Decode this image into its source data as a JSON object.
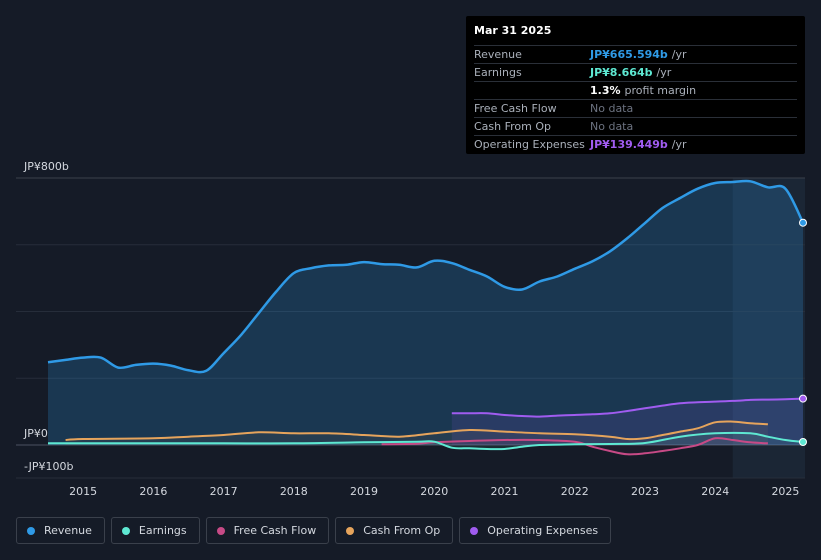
{
  "tooltip": {
    "date": "Mar 31 2025",
    "rows": [
      {
        "label": "Revenue",
        "value": "JP¥665.594b",
        "suffix": "/yr",
        "color": "#2f9ae6"
      },
      {
        "label": "Earnings",
        "value": "JP¥8.664b",
        "suffix": "/yr",
        "color": "#5ee8d2"
      },
      {
        "label": "",
        "value": "1.3%",
        "suffix": "profit margin",
        "color": "#ffffff"
      },
      {
        "label": "Free Cash Flow",
        "value": "No data",
        "nodata": true
      },
      {
        "label": "Cash From Op",
        "value": "No data",
        "nodata": true
      },
      {
        "label": "Operating Expenses",
        "value": "JP¥139.449b",
        "suffix": "/yr",
        "color": "#a05cf0"
      }
    ]
  },
  "legend": [
    {
      "label": "Revenue",
      "color": "#2f9ae6"
    },
    {
      "label": "Earnings",
      "color": "#5ee8d2"
    },
    {
      "label": "Free Cash Flow",
      "color": "#c74a86"
    },
    {
      "label": "Cash From Op",
      "color": "#e6a45c"
    },
    {
      "label": "Operating Expenses",
      "color": "#a05cf0"
    }
  ],
  "chart_data": {
    "type": "area",
    "y_label_top": "JP¥800b",
    "y_label_zero": "JP¥0",
    "y_label_bottom": "-JP¥100b",
    "ylim": [
      -100,
      800
    ],
    "xlim": [
      2014.5,
      2025.25
    ],
    "x_ticks": [
      "2015",
      "2016",
      "2017",
      "2018",
      "2019",
      "2020",
      "2021",
      "2022",
      "2023",
      "2024",
      "2025"
    ],
    "highlight_from": 2024.25,
    "series": [
      {
        "name": "Revenue",
        "color": "#2f9ae6",
        "x": [
          2014.5,
          2014.75,
          2015.0,
          2015.25,
          2015.5,
          2015.75,
          2016.0,
          2016.25,
          2016.5,
          2016.75,
          2017.0,
          2017.25,
          2017.5,
          2017.75,
          2018.0,
          2018.25,
          2018.5,
          2018.75,
          2019.0,
          2019.25,
          2019.5,
          2019.75,
          2020.0,
          2020.25,
          2020.5,
          2020.75,
          2021.0,
          2021.25,
          2021.5,
          2021.75,
          2022.0,
          2022.25,
          2022.5,
          2022.75,
          2023.0,
          2023.25,
          2023.5,
          2023.75,
          2024.0,
          2024.25,
          2024.5,
          2024.75,
          2025.0,
          2025.25
        ],
        "values": [
          248,
          255,
          262,
          262,
          232,
          240,
          244,
          238,
          224,
          222,
          275,
          330,
          395,
          460,
          515,
          530,
          538,
          540,
          548,
          542,
          540,
          532,
          552,
          545,
          525,
          505,
          474,
          466,
          490,
          505,
          528,
          550,
          580,
          620,
          665,
          710,
          740,
          768,
          785,
          788,
          790,
          772,
          768,
          666
        ]
      },
      {
        "name": "Earnings",
        "color": "#5ee8d2",
        "x": [
          2014.5,
          2015.0,
          2016.0,
          2017.0,
          2018.0,
          2019.0,
          2019.75,
          2020.0,
          2020.25,
          2020.5,
          2020.75,
          2021.0,
          2021.25,
          2021.5,
          2022.0,
          2022.5,
          2023.0,
          2023.5,
          2024.0,
          2024.5,
          2024.75,
          2025.0,
          2025.25
        ],
        "values": [
          5,
          5,
          5,
          5,
          5,
          8,
          10,
          10,
          -8,
          -10,
          -12,
          -12,
          -5,
          0,
          2,
          3,
          6,
          25,
          35,
          35,
          25,
          15,
          9
        ]
      },
      {
        "name": "Free Cash Flow",
        "color": "#c74a86",
        "x": [
          2019.25,
          2019.75,
          2020.0,
          2020.5,
          2021.0,
          2021.5,
          2022.0,
          2022.25,
          2022.5,
          2022.75,
          2023.0,
          2023.25,
          2023.5,
          2023.75,
          2024.0,
          2024.25,
          2024.5,
          2024.75
        ],
        "values": [
          2,
          4,
          8,
          12,
          15,
          15,
          10,
          -5,
          -18,
          -28,
          -25,
          -18,
          -10,
          0,
          20,
          15,
          8,
          5
        ]
      },
      {
        "name": "Cash From Op",
        "color": "#e6a45c",
        "x": [
          2014.75,
          2015.0,
          2016.0,
          2016.5,
          2017.0,
          2017.5,
          2018.0,
          2018.5,
          2019.0,
          2019.5,
          2020.0,
          2020.5,
          2021.0,
          2021.5,
          2022.0,
          2022.5,
          2022.75,
          2023.0,
          2023.25,
          2023.5,
          2023.75,
          2024.0,
          2024.25,
          2024.5,
          2024.75
        ],
        "values": [
          15,
          18,
          20,
          25,
          30,
          38,
          35,
          35,
          30,
          25,
          35,
          45,
          40,
          35,
          32,
          25,
          18,
          20,
          30,
          40,
          50,
          68,
          70,
          65,
          62
        ]
      },
      {
        "name": "Operating Expenses",
        "color": "#a05cf0",
        "x": [
          2020.25,
          2020.5,
          2020.75,
          2021.0,
          2021.25,
          2021.5,
          2021.75,
          2022.0,
          2022.25,
          2022.5,
          2022.75,
          2023.0,
          2023.25,
          2023.5,
          2023.75,
          2024.0,
          2024.25,
          2024.5,
          2024.75,
          2025.0,
          2025.25
        ],
        "values": [
          95,
          95,
          95,
          90,
          87,
          85,
          88,
          90,
          92,
          95,
          102,
          110,
          118,
          125,
          128,
          130,
          132,
          135,
          136,
          137,
          139
        ]
      }
    ]
  }
}
